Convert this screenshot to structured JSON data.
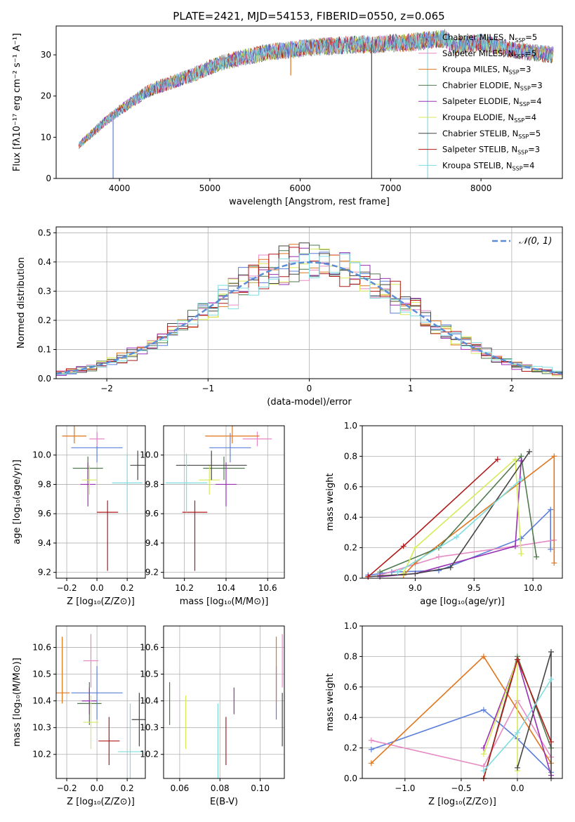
{
  "figure_title": "PLATE=2421, MJD=54153, FIBERID=0550, z=0.065",
  "models": [
    {
      "label": "Chabrier MILES, N",
      "sub": "SSP",
      "suffix": "=5",
      "color": "#5b7fdb"
    },
    {
      "label": "Salpeter MILES, N",
      "sub": "SSP",
      "suffix": "=5",
      "color": "#e58ac3"
    },
    {
      "label": "Kroupa MILES, N",
      "sub": "SSP",
      "suffix": "=3",
      "color": "#e0761e"
    },
    {
      "label": "Chabrier ELODIE, N",
      "sub": "SSP",
      "suffix": "=3",
      "color": "#4f7a4f"
    },
    {
      "label": "Salpeter ELODIE, N",
      "sub": "SSP",
      "suffix": "=4",
      "color": "#9a2fb4"
    },
    {
      "label": "Kroupa ELODIE, N",
      "sub": "SSP",
      "suffix": "=4",
      "color": "#d7ea58"
    },
    {
      "label": "Chabrier STELIB, N",
      "sub": "SSP",
      "suffix": "=5",
      "color": "#444444"
    },
    {
      "label": "Salpeter STELIB, N",
      "sub": "SSP",
      "suffix": "=3",
      "color": "#b21a1a"
    },
    {
      "label": "Kroupa STELIB, N",
      "sub": "SSP",
      "suffix": "=4",
      "color": "#7fdde0"
    }
  ],
  "chart_data": [
    {
      "id": "spectrum",
      "type": "line",
      "xlabel": "wavelength [Angstrom, rest frame]",
      "ylabel": "Flux [fλ10⁻¹⁷ erg cm⁻² s⁻¹ A⁻¹]",
      "xlim": [
        3300,
        8900
      ],
      "ylim": [
        0,
        37
      ],
      "xticks": [
        4000,
        5000,
        6000,
        7000,
        8000
      ],
      "yticks": [
        0,
        10,
        20,
        30
      ],
      "grid": false,
      "legend": "top-right",
      "continuum": [
        [
          3550,
          8
        ],
        [
          3650,
          10
        ],
        [
          3750,
          12
        ],
        [
          3850,
          14
        ],
        [
          4000,
          16.5
        ],
        [
          4100,
          18
        ],
        [
          4200,
          19.5
        ],
        [
          4300,
          21
        ],
        [
          4400,
          22
        ],
        [
          4600,
          23.5
        ],
        [
          4800,
          25
        ],
        [
          5000,
          27
        ],
        [
          5200,
          28.5
        ],
        [
          5400,
          29.5
        ],
        [
          5600,
          30.5
        ],
        [
          5800,
          31
        ],
        [
          6000,
          31.5
        ],
        [
          6200,
          32
        ],
        [
          6400,
          32.2
        ],
        [
          6600,
          32.5
        ],
        [
          6800,
          32.5
        ],
        [
          7000,
          32.8
        ],
        [
          7200,
          33
        ],
        [
          7400,
          33.5
        ],
        [
          7600,
          34
        ],
        [
          7700,
          32
        ],
        [
          7800,
          32.5
        ],
        [
          8000,
          33
        ],
        [
          8200,
          32
        ],
        [
          8400,
          31
        ],
        [
          8600,
          30.5
        ],
        [
          8800,
          30
        ]
      ],
      "spikes": [
        [
          3930,
          0
        ],
        [
          5895,
          25
        ],
        [
          6563,
          33
        ],
        [
          6790,
          0
        ],
        [
          7410,
          0
        ]
      ]
    },
    {
      "id": "residuals",
      "type": "histogram",
      "xlabel": "(data-model)/error",
      "ylabel": "Normed distribution",
      "xlim": [
        -2.5,
        2.5
      ],
      "ylim": [
        0,
        0.52
      ],
      "xticks": [
        -2,
        -1,
        0,
        1,
        2
      ],
      "yticks": [
        0,
        0.1,
        0.2,
        0.3,
        0.4,
        0.5
      ],
      "grid": true,
      "legend": "top-right",
      "reference_label": "𝒩(0, 1)",
      "bin_width": 0.1
    },
    {
      "id": "age_vs_Z",
      "type": "errorbar",
      "xlabel": "Z [log₁₀(Z/Z⊙)]",
      "ylabel": "age  [log₁₀(age/yr)]",
      "xlim": [
        -0.27,
        0.32
      ],
      "ylim": [
        9.16,
        10.2
      ],
      "xticks": [
        -0.2,
        0.0,
        0.2
      ],
      "yticks": [
        9.2,
        9.4,
        9.6,
        9.8,
        10.0
      ],
      "grid": true,
      "points": [
        [
          0.0,
          10.05,
          0.17,
          0.1,
          0.1
        ],
        [
          0.0,
          10.11,
          0.05,
          0.05,
          0.05
        ],
        [
          -0.15,
          10.13,
          0.08,
          0.05,
          0.18
        ],
        [
          -0.06,
          9.91,
          0.1,
          0.08,
          0.08
        ],
        [
          -0.06,
          9.8,
          0.05,
          0.15,
          0.15
        ],
        [
          -0.05,
          9.83,
          0.05,
          0.1,
          0.1
        ],
        [
          0.27,
          9.93,
          0.05,
          0.1,
          0.1
        ],
        [
          0.07,
          9.61,
          0.07,
          0.4,
          0.08
        ],
        [
          0.2,
          9.81,
          0.1,
          0.2,
          0.2
        ]
      ]
    },
    {
      "id": "age_vs_mass",
      "type": "errorbar",
      "xlabel": "mass [log₁₀(M/M⊙)]",
      "ylabel": "",
      "xlim": [
        10.1,
        10.68
      ],
      "ylim": [
        9.16,
        10.2
      ],
      "xticks": [
        10.2,
        10.4,
        10.6
      ],
      "yticks": [
        9.2,
        9.4,
        9.6,
        9.8,
        10.0
      ],
      "grid": true,
      "points": [
        [
          10.42,
          10.05,
          0.1,
          0.1,
          0.1
        ],
        [
          10.55,
          10.11,
          0.07,
          0.05,
          0.05
        ],
        [
          10.43,
          10.13,
          0.13,
          0.05,
          0.18
        ],
        [
          10.39,
          9.91,
          0.1,
          0.08,
          0.08
        ],
        [
          10.4,
          9.8,
          0.05,
          0.15,
          0.15
        ],
        [
          10.32,
          9.83,
          0.05,
          0.1,
          0.1
        ],
        [
          10.33,
          9.93,
          0.17,
          0.1,
          0.1
        ],
        [
          10.25,
          9.61,
          0.06,
          0.4,
          0.08
        ],
        [
          10.21,
          9.81,
          0.1,
          0.2,
          0.2
        ]
      ]
    },
    {
      "id": "weight_vs_age",
      "type": "line",
      "xlabel": "age  [log₁₀(age/yr)]",
      "ylabel": "mass weight",
      "xlim": [
        8.55,
        10.25
      ],
      "ylim": [
        0,
        1.0
      ],
      "xticks": [
        9.0,
        9.5,
        10.0
      ],
      "yticks": [
        0,
        0.2,
        0.4,
        0.6,
        0.8,
        1.0
      ],
      "grid": true,
      "series": [
        [
          [
            8.6,
            0.02
          ],
          [
            8.8,
            0.04
          ],
          [
            9.2,
            0.05
          ],
          [
            9.9,
            0.26
          ],
          [
            10.15,
            0.45
          ],
          [
            10.15,
            0.19
          ]
        ],
        [
          [
            8.7,
            0.02
          ],
          [
            9.2,
            0.14
          ],
          [
            9.85,
            0.21
          ],
          [
            10.18,
            0.25
          ]
        ],
        [
          [
            8.9,
            0.02
          ],
          [
            9.0,
            0.1
          ],
          [
            10.18,
            0.8
          ],
          [
            10.18,
            0.1
          ]
        ],
        [
          [
            8.7,
            0.04
          ],
          [
            9.2,
            0.2
          ],
          [
            9.9,
            0.8
          ],
          [
            10.03,
            0.14
          ]
        ],
        [
          [
            8.7,
            0.01
          ],
          [
            9.0,
            0.03
          ],
          [
            9.85,
            0.21
          ],
          [
            9.9,
            0.77
          ]
        ],
        [
          [
            8.9,
            0.03
          ],
          [
            9.0,
            0.2
          ],
          [
            9.85,
            0.78
          ],
          [
            9.9,
            0.16
          ]
        ],
        [
          [
            8.6,
            0.01
          ],
          [
            9.0,
            0.03
          ],
          [
            9.3,
            0.07
          ],
          [
            9.97,
            0.83
          ]
        ],
        [
          [
            8.6,
            0.01
          ],
          [
            8.9,
            0.21
          ],
          [
            9.7,
            0.78
          ]
        ],
        [
          [
            8.85,
            0.04
          ],
          [
            9.35,
            0.27
          ],
          [
            9.9,
            0.65
          ]
        ]
      ]
    },
    {
      "id": "mass_vs_Z",
      "type": "errorbar",
      "xlabel": "Z [log₁₀(Z/Z⊙)]",
      "ylabel": "mass [log₁₀(M/M⊙)]",
      "xlim": [
        -0.27,
        0.32
      ],
      "ylim": [
        10.11,
        10.68
      ],
      "xticks": [
        -0.2,
        0.0,
        0.2
      ],
      "yticks": [
        10.2,
        10.3,
        10.4,
        10.5,
        10.6
      ],
      "grid": true,
      "points": [
        [
          0.0,
          10.43,
          0.17,
          0.1,
          0.1
        ],
        [
          -0.04,
          10.55,
          0.05,
          0.1,
          0.1
        ],
        [
          -0.23,
          10.43,
          0.05,
          0.04,
          0.21
        ],
        [
          -0.05,
          10.39,
          0.08,
          0.08,
          0.08
        ],
        [
          -0.05,
          10.4,
          0.05,
          0.05,
          0.05
        ],
        [
          -0.04,
          10.32,
          0.05,
          0.1,
          0.1
        ],
        [
          0.28,
          10.33,
          0.05,
          0.1,
          0.1
        ],
        [
          0.08,
          10.25,
          0.07,
          0.09,
          0.09
        ],
        [
          0.22,
          10.21,
          0.08,
          0.18,
          0.18
        ]
      ]
    },
    {
      "id": "mass_vs_EBV",
      "type": "errorbar",
      "xlabel": "E(B-V)",
      "ylabel": "",
      "xlim": [
        0.052,
        0.112
      ],
      "ylim": [
        10.11,
        10.68
      ],
      "xticks": [
        0.06,
        0.08,
        0.1
      ],
      "yticks": [
        10.2,
        10.3,
        10.4,
        10.5,
        10.6
      ],
      "grid": true,
      "points": [
        [
          0.108,
          10.43,
          0,
          0.1,
          0.1
        ],
        [
          0.111,
          10.55,
          0,
          0.1,
          0.1
        ],
        [
          0.108,
          10.43,
          0,
          0.04,
          0.21
        ],
        [
          0.055,
          10.39,
          0,
          0.08,
          0.08
        ],
        [
          0.087,
          10.4,
          0,
          0.05,
          0.05
        ],
        [
          0.063,
          10.32,
          0,
          0.1,
          0.1
        ],
        [
          0.111,
          10.33,
          0,
          0.1,
          0.1
        ],
        [
          0.083,
          10.25,
          0,
          0.09,
          0.09
        ],
        [
          0.079,
          10.21,
          0,
          0.18,
          0.18
        ]
      ]
    },
    {
      "id": "weight_vs_Z",
      "type": "line",
      "xlabel": "Z [log₁₀(Z/Z⊙)]",
      "ylabel": "mass weight",
      "xlim": [
        -1.38,
        0.4
      ],
      "ylim": [
        0,
        1.0
      ],
      "xticks": [
        -1.0,
        -0.5,
        0.0
      ],
      "yticks": [
        0,
        0.2,
        0.4,
        0.6,
        0.8,
        1.0
      ],
      "grid": true,
      "series": [
        [
          [
            -1.3,
            0.19
          ],
          [
            -0.3,
            0.45
          ],
          [
            0.0,
            0.26
          ],
          [
            0.3,
            0.04
          ]
        ],
        [
          [
            -1.3,
            0.25
          ],
          [
            -0.3,
            0.08
          ],
          [
            0.0,
            0.51
          ],
          [
            0.3,
            0.14
          ]
        ],
        [
          [
            -1.3,
            0.1
          ],
          [
            -0.3,
            0.8
          ],
          [
            0.3,
            0.1
          ]
        ],
        [
          [
            -0.3,
            0.0
          ],
          [
            0.0,
            0.8
          ],
          [
            0.3,
            0.2
          ]
        ],
        [
          [
            -0.3,
            0.2
          ],
          [
            0.0,
            0.78
          ],
          [
            0.3,
            0.02
          ]
        ],
        [
          [
            -0.3,
            0.16
          ],
          [
            0.0,
            0.78
          ],
          [
            0.0,
            0.05
          ]
        ],
        [
          [
            0.0,
            0.07
          ],
          [
            0.3,
            0.83
          ],
          [
            0.3,
            0.0
          ]
        ],
        [
          [
            -0.3,
            0.0
          ],
          [
            0.0,
            0.78
          ],
          [
            0.3,
            0.24
          ]
        ],
        [
          [
            -0.3,
            0.05
          ],
          [
            0.0,
            0.3
          ],
          [
            0.3,
            0.65
          ]
        ]
      ]
    }
  ]
}
